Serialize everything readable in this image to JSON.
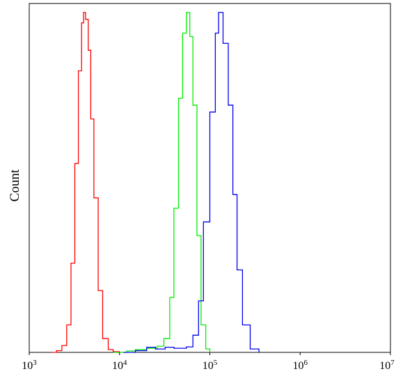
{
  "chart_data": {
    "type": "line",
    "title": "",
    "xlabel": "",
    "ylabel": "Count",
    "x_scale": "log",
    "xlim": [
      1000,
      10000000
    ],
    "ylim": [
      0,
      1
    ],
    "grid": false,
    "legend": "none",
    "x_ticks": [
      {
        "base": "10",
        "exp": "3",
        "value": 1000
      },
      {
        "base": "10",
        "exp": "4",
        "value": 10000
      },
      {
        "base": "10",
        "exp": "5",
        "value": 100000
      },
      {
        "base": "10",
        "exp": "6",
        "value": 1000000
      },
      {
        "base": "10",
        "exp": "7",
        "value": 10000000
      }
    ],
    "series": [
      {
        "color": "#ff0000",
        "x": [
          1800,
          2000,
          2300,
          2600,
          2900,
          3200,
          3500,
          3800,
          4000,
          4200,
          4500,
          4800,
          5200,
          5800,
          6500,
          7500,
          8500,
          10000
        ],
        "y": [
          0.0,
          0.005,
          0.02,
          0.08,
          0.26,
          0.55,
          0.82,
          0.96,
          0.99,
          0.97,
          0.88,
          0.68,
          0.45,
          0.18,
          0.04,
          0.008,
          0.002,
          0.0
        ]
      },
      {
        "color": "#00ee00",
        "x": [
          8500,
          12000,
          15000,
          20000,
          26000,
          31000,
          36000,
          40000,
          45000,
          50000,
          55000,
          60000,
          65000,
          72000,
          80000,
          90000,
          100000
        ],
        "y": [
          0.0,
          0.004,
          0.008,
          0.012,
          0.018,
          0.04,
          0.16,
          0.42,
          0.74,
          0.93,
          0.99,
          0.92,
          0.72,
          0.34,
          0.08,
          0.01,
          0.0
        ]
      },
      {
        "color": "#0000ee",
        "x": [
          11000,
          15000,
          20000,
          25000,
          32000,
          40000,
          55000,
          65000,
          75000,
          85000,
          100000,
          115000,
          125000,
          140000,
          160000,
          180000,
          200000,
          230000,
          280000,
          350000
        ],
        "y": [
          0.0,
          0.005,
          0.015,
          0.01,
          0.015,
          0.012,
          0.016,
          0.05,
          0.15,
          0.38,
          0.7,
          0.93,
          0.99,
          0.9,
          0.72,
          0.46,
          0.24,
          0.08,
          0.01,
          0.0
        ]
      }
    ]
  }
}
